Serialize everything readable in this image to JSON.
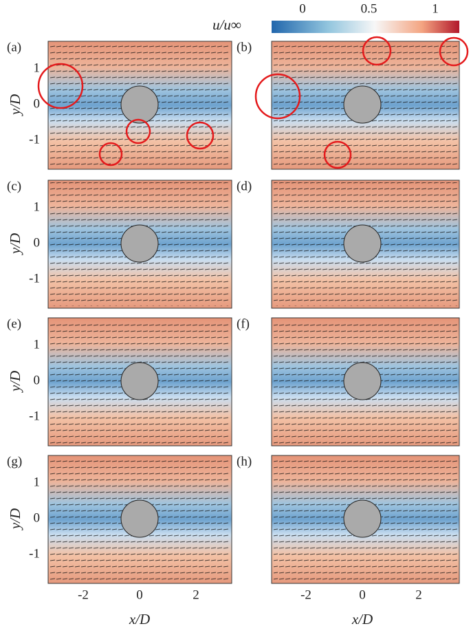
{
  "colorbar": {
    "label": "u/u∞",
    "ticks": [
      0,
      0.5,
      1
    ]
  },
  "panels": [
    {
      "label": "(a)"
    },
    {
      "label": "(b)"
    },
    {
      "label": "(c)"
    },
    {
      "label": "(d)"
    },
    {
      "label": "(e)"
    },
    {
      "label": "(f)"
    },
    {
      "label": "(g)"
    },
    {
      "label": "(h)"
    }
  ],
  "x_axis": {
    "label": "x/D",
    "ticks": [
      -2,
      0,
      2
    ]
  },
  "y_axis": {
    "label": "y/D",
    "ticks": [
      1,
      0,
      -1
    ]
  }
}
